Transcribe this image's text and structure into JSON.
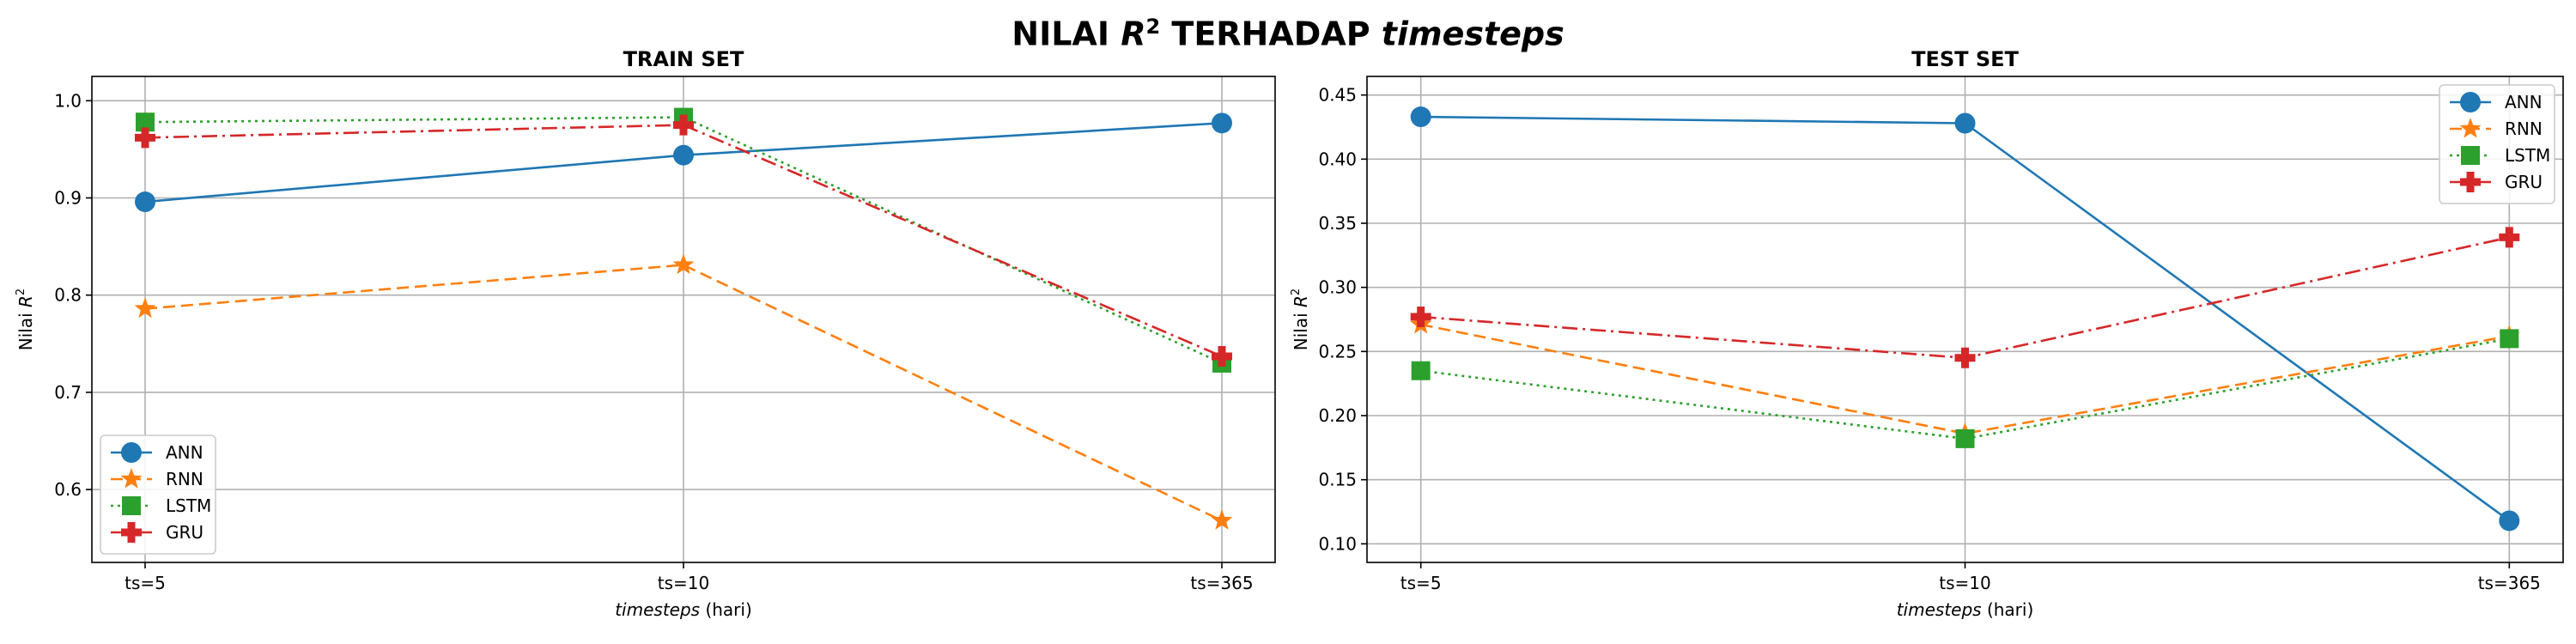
{
  "title": {
    "prefix": "NILAI ",
    "symbol": "R",
    "exponent": "2",
    "mid": " TERHADAP ",
    "italic": "timesteps"
  },
  "colors": {
    "ANN": "#1f77b4",
    "RNN": "#ff7f0e",
    "LSTM": "#2ca02c",
    "GRU": "#d62728"
  },
  "chart_data": [
    {
      "type": "line",
      "title": "TRAIN SET",
      "xlabel_italic": "timesteps",
      "xlabel_rest": " (hari)",
      "ylabel": "Nilai R",
      "ylabel_exponent": "2",
      "categories": [
        "ts=5",
        "ts=10",
        "ts=365"
      ],
      "ylim": [
        0.525,
        1.025
      ],
      "yticks": [
        "0.6",
        "0.7",
        "0.8",
        "0.9",
        "1.0"
      ],
      "grid": true,
      "legend": "lower-left",
      "series": [
        {
          "name": "ANN",
          "values": [
            0.896,
            0.944,
            0.977
          ],
          "marker": "circle",
          "linestyle": "solid"
        },
        {
          "name": "RNN",
          "values": [
            0.786,
            0.831,
            0.568
          ],
          "marker": "star",
          "linestyle": "dashed"
        },
        {
          "name": "LSTM",
          "values": [
            0.978,
            0.983,
            0.73
          ],
          "marker": "square",
          "linestyle": "dotted"
        },
        {
          "name": "GRU",
          "values": [
            0.962,
            0.975,
            0.737
          ],
          "marker": "plus",
          "linestyle": "dashdot"
        }
      ]
    },
    {
      "type": "line",
      "title": "TEST SET",
      "xlabel_italic": "timesteps",
      "xlabel_rest": " (hari)",
      "ylabel": "Nilai R",
      "ylabel_exponent": "2",
      "categories": [
        "ts=5",
        "ts=10",
        "ts=365"
      ],
      "ylim": [
        0.0855,
        0.4645
      ],
      "yticks": [
        "0.10",
        "0.15",
        "0.20",
        "0.25",
        "0.30",
        "0.35",
        "0.40",
        "0.45"
      ],
      "grid": true,
      "legend": "upper-right",
      "series": [
        {
          "name": "ANN",
          "values": [
            0.433,
            0.428,
            0.118
          ],
          "marker": "circle",
          "linestyle": "solid"
        },
        {
          "name": "RNN",
          "values": [
            0.271,
            0.186,
            0.262
          ],
          "marker": "star",
          "linestyle": "dashed"
        },
        {
          "name": "LSTM",
          "values": [
            0.235,
            0.182,
            0.26
          ],
          "marker": "square",
          "linestyle": "dotted"
        },
        {
          "name": "GRU",
          "values": [
            0.277,
            0.245,
            0.339
          ],
          "marker": "plus",
          "linestyle": "dashdot"
        }
      ]
    }
  ]
}
